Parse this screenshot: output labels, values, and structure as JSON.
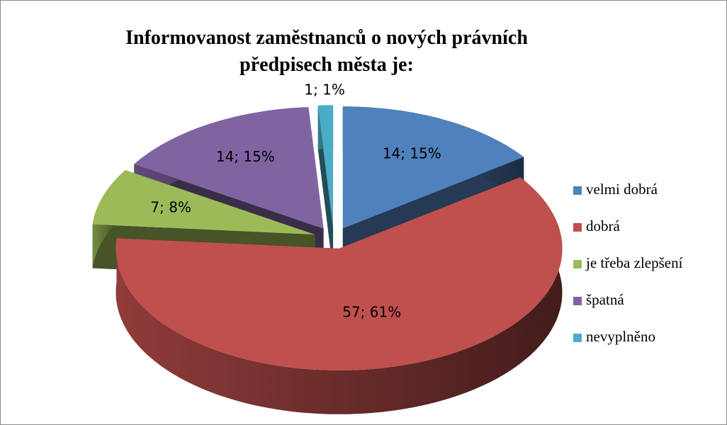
{
  "chart_data": {
    "type": "pie3d",
    "title": "Informovanost zaměstnanců o nových právních předpisech města je:",
    "categories": [
      "velmi dobrá",
      "dobrá",
      "je třeba  zlepšení",
      "špatná",
      "nevyplněno"
    ],
    "values": [
      14,
      57,
      7,
      14,
      1
    ],
    "value_labels": [
      "14; 15%",
      "57; 61%",
      "7; 8%",
      "14; 15%",
      "1; 1%"
    ],
    "colors": [
      "#4f81bd",
      "#c0504d",
      "#9bbb59",
      "#8064a2",
      "#4bacc6"
    ],
    "legend": "right"
  }
}
